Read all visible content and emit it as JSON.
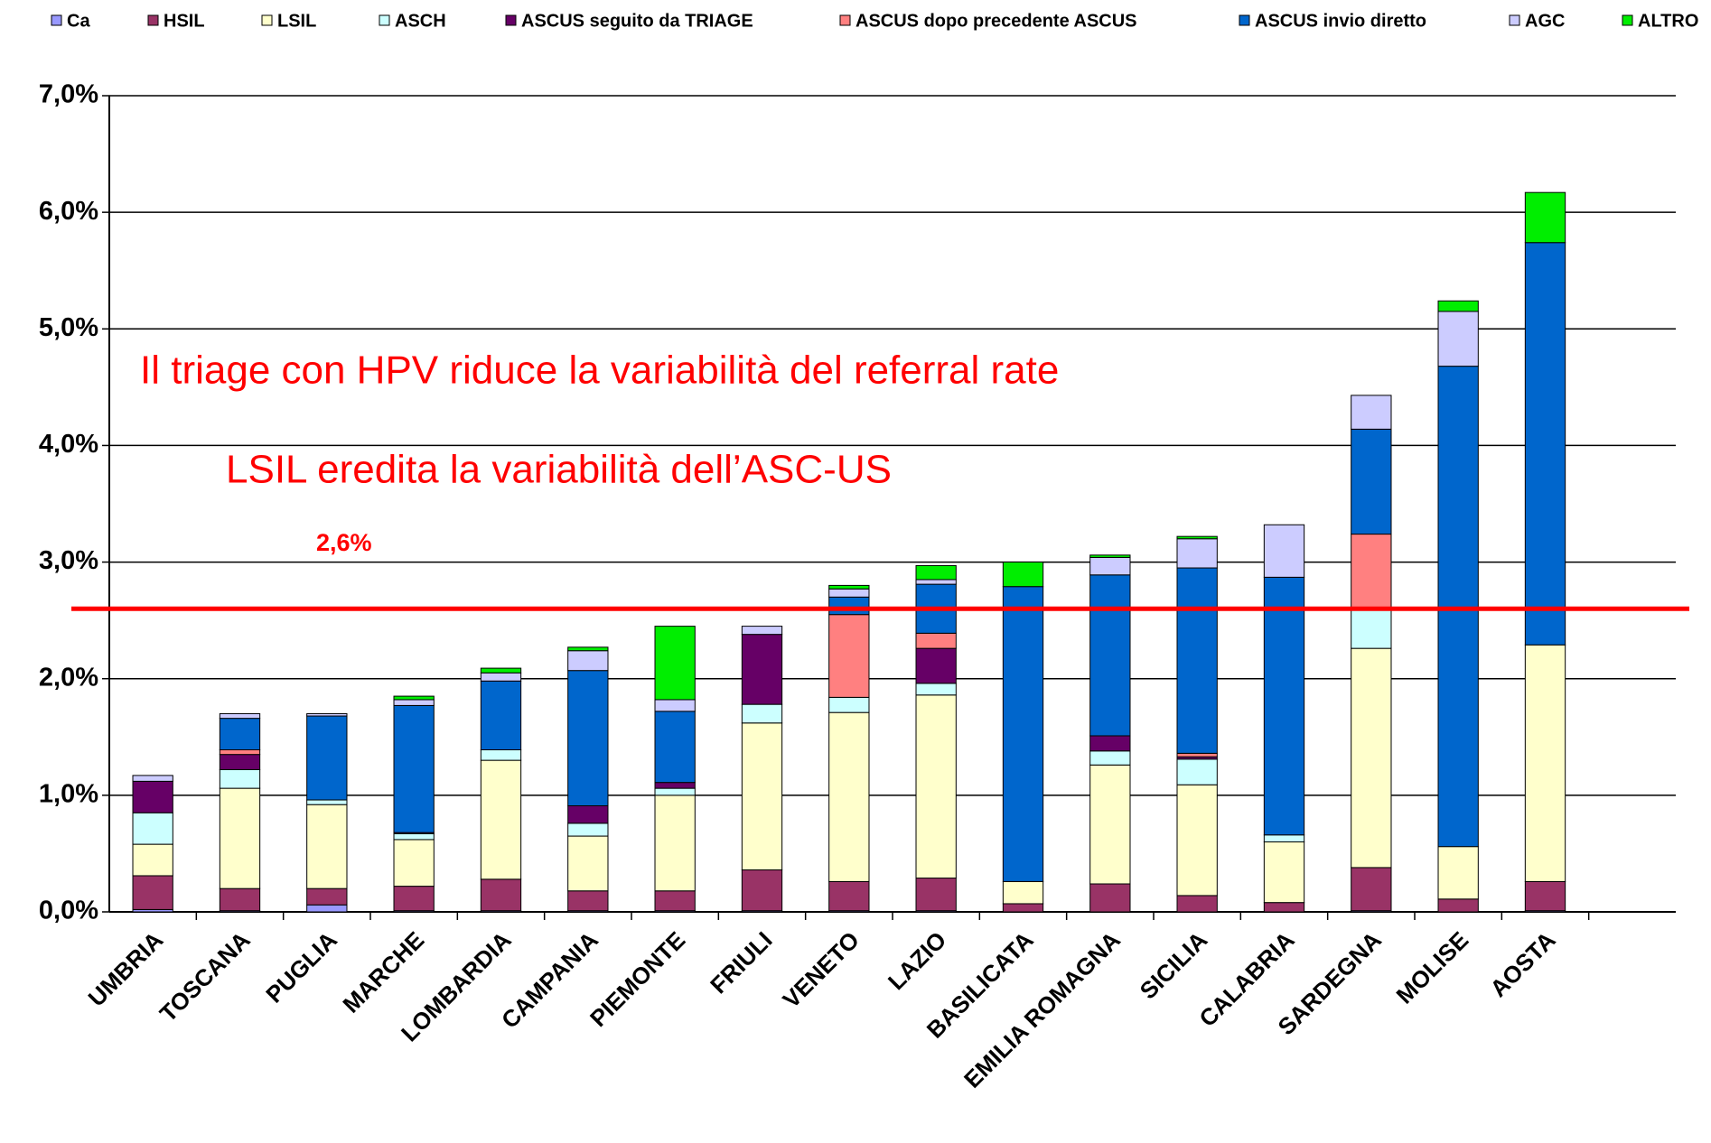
{
  "chart_data": {
    "type": "stacked_bar",
    "categories": [
      "UMBRIA",
      "TOSCANA",
      "PUGLIA",
      "MARCHE",
      "LOMBARDIA",
      "CAMPANIA",
      "PIEMONTE",
      "FRIULI",
      "VENETO",
      "LAZIO",
      "BASILICATA",
      "EMILIA ROMAGNA",
      "SICILIA",
      "CALABRIA",
      "SARDEGNA",
      "MOLISE",
      "AOSTA"
    ],
    "series": [
      {
        "name": "Ca",
        "color": "#9999ff",
        "values": [
          0.02,
          0.01,
          0.06,
          0.01,
          0.01,
          0.01,
          0.01,
          0.01,
          0.01,
          0.01,
          0,
          0,
          0,
          0,
          0.01,
          0,
          0.01
        ]
      },
      {
        "name": "HSIL",
        "color": "#993366",
        "values": [
          0.29,
          0.19,
          0.14,
          0.21,
          0.27,
          0.17,
          0.17,
          0.35,
          0.25,
          0.28,
          0.07,
          0.24,
          0.14,
          0.08,
          0.37,
          0.11,
          0.25
        ]
      },
      {
        "name": "LSIL",
        "color": "#ffffcc",
        "values": [
          0.27,
          0.86,
          0.72,
          0.4,
          1.02,
          0.47,
          0.82,
          1.26,
          1.45,
          1.57,
          0.19,
          1.02,
          0.95,
          0.52,
          1.88,
          0.45,
          2.03
        ]
      },
      {
        "name": "ASCH",
        "color": "#ccffff",
        "values": [
          0.27,
          0.16,
          0.04,
          0.05,
          0.09,
          0.11,
          0.06,
          0.16,
          0.13,
          0.1,
          0,
          0.12,
          0.22,
          0.06,
          0.35,
          0,
          0
        ]
      },
      {
        "name": "ASCUS seguito da TRIAGE",
        "color": "#660066",
        "values": [
          0.27,
          0.13,
          0,
          0.01,
          0,
          0.15,
          0.05,
          0.6,
          0,
          0.3,
          0,
          0.13,
          0.02,
          0,
          0,
          0,
          0
        ]
      },
      {
        "name": "ASCUS dopo precedente ASCUS",
        "color": "#ff8080",
        "values": [
          0,
          0.04,
          0,
          0,
          0,
          0,
          0,
          0,
          0.71,
          0.13,
          0,
          0,
          0.03,
          0,
          0.63,
          0,
          0
        ]
      },
      {
        "name": "ASCUS invio diretto",
        "color": "#0066cc",
        "values": [
          0,
          0.27,
          0.72,
          1.09,
          0.59,
          1.16,
          0.61,
          0,
          0.15,
          0.42,
          2.53,
          1.38,
          1.59,
          2.21,
          0.9,
          4.12,
          3.45
        ]
      },
      {
        "name": "AGC",
        "color": "#ccccff",
        "values": [
          0.05,
          0.04,
          0.02,
          0.05,
          0.07,
          0.17,
          0.1,
          0.07,
          0.07,
          0.04,
          0,
          0.15,
          0.25,
          0.45,
          0.29,
          0.47,
          0
        ]
      },
      {
        "name": "ALTRO",
        "color": "#00ee00",
        "values": [
          0,
          0,
          0,
          0.03,
          0.04,
          0.03,
          0.63,
          0,
          0.03,
          0.12,
          0.21,
          0.02,
          0.02,
          0,
          0,
          0.09,
          0.43
        ]
      }
    ],
    "ylim": [
      0,
      7
    ],
    "yticks": [
      {
        "value": 0,
        "label": "0,0%"
      },
      {
        "value": 1,
        "label": "1,0%"
      },
      {
        "value": 2,
        "label": "2,0%"
      },
      {
        "value": 3,
        "label": "3,0%"
      },
      {
        "value": 4,
        "label": "4,0%"
      },
      {
        "value": 5,
        "label": "5,0%"
      },
      {
        "value": 6,
        "label": "6,0%"
      },
      {
        "value": 7,
        "label": "7,0%"
      }
    ],
    "grid": true,
    "legend": "top",
    "reference_line": {
      "value": 2.6,
      "label": "2,6%",
      "color": "#ff0000"
    },
    "annotations": [
      "Il triage con HPV riduce la variabilità del referral rate",
      "LSIL eredita la variabilità dell’ASC-US"
    ]
  }
}
